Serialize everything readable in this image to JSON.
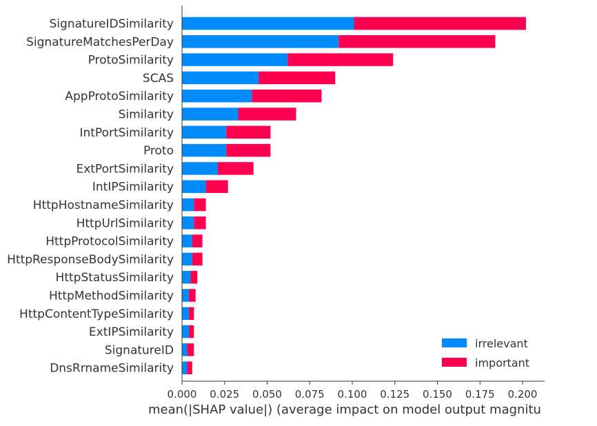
{
  "chart_data": {
    "type": "bar",
    "orientation": "horizontal",
    "stacked": true,
    "title": "",
    "xlabel": "mean(|SHAP value|) (average impact on model output magnitu",
    "ylabel": "",
    "xlim": [
      0.0,
      0.2125
    ],
    "xticks": [
      "0.000",
      "0.025",
      "0.050",
      "0.075",
      "0.100",
      "0.125",
      "0.150",
      "0.175",
      "0.200"
    ],
    "legend_position": "bottom-right",
    "categories": [
      "SignatureIDSimilarity",
      "SignatureMatchesPerDay",
      "ProtoSimilarity",
      "SCAS",
      "AppProtoSimilarity",
      "Similarity",
      "IntPortSimilarity",
      "Proto",
      "ExtPortSimilarity",
      "IntIPSimilarity",
      "HttpHostnameSimilarity",
      "HttpUrlSimilarity",
      "HttpProtocolSimilarity",
      "HttpResponseBodySimilarity",
      "HttpStatusSimilarity",
      "HttpMethodSimilarity",
      "HttpContentTypeSimilarity",
      "ExtIPSimilarity",
      "SignatureID",
      "DnsRrnameSimilarity"
    ],
    "series": [
      {
        "name": "irrelevant",
        "color": "#008bfb",
        "values": [
          0.101,
          0.092,
          0.062,
          0.045,
          0.041,
          0.033,
          0.026,
          0.026,
          0.021,
          0.014,
          0.007,
          0.007,
          0.006,
          0.006,
          0.005,
          0.004,
          0.004,
          0.004,
          0.003,
          0.003
        ]
      },
      {
        "name": "important",
        "color": "#ff0051",
        "values": [
          0.101,
          0.092,
          0.062,
          0.045,
          0.041,
          0.034,
          0.026,
          0.026,
          0.021,
          0.013,
          0.007,
          0.007,
          0.006,
          0.006,
          0.004,
          0.004,
          0.003,
          0.003,
          0.004,
          0.003
        ]
      }
    ]
  }
}
